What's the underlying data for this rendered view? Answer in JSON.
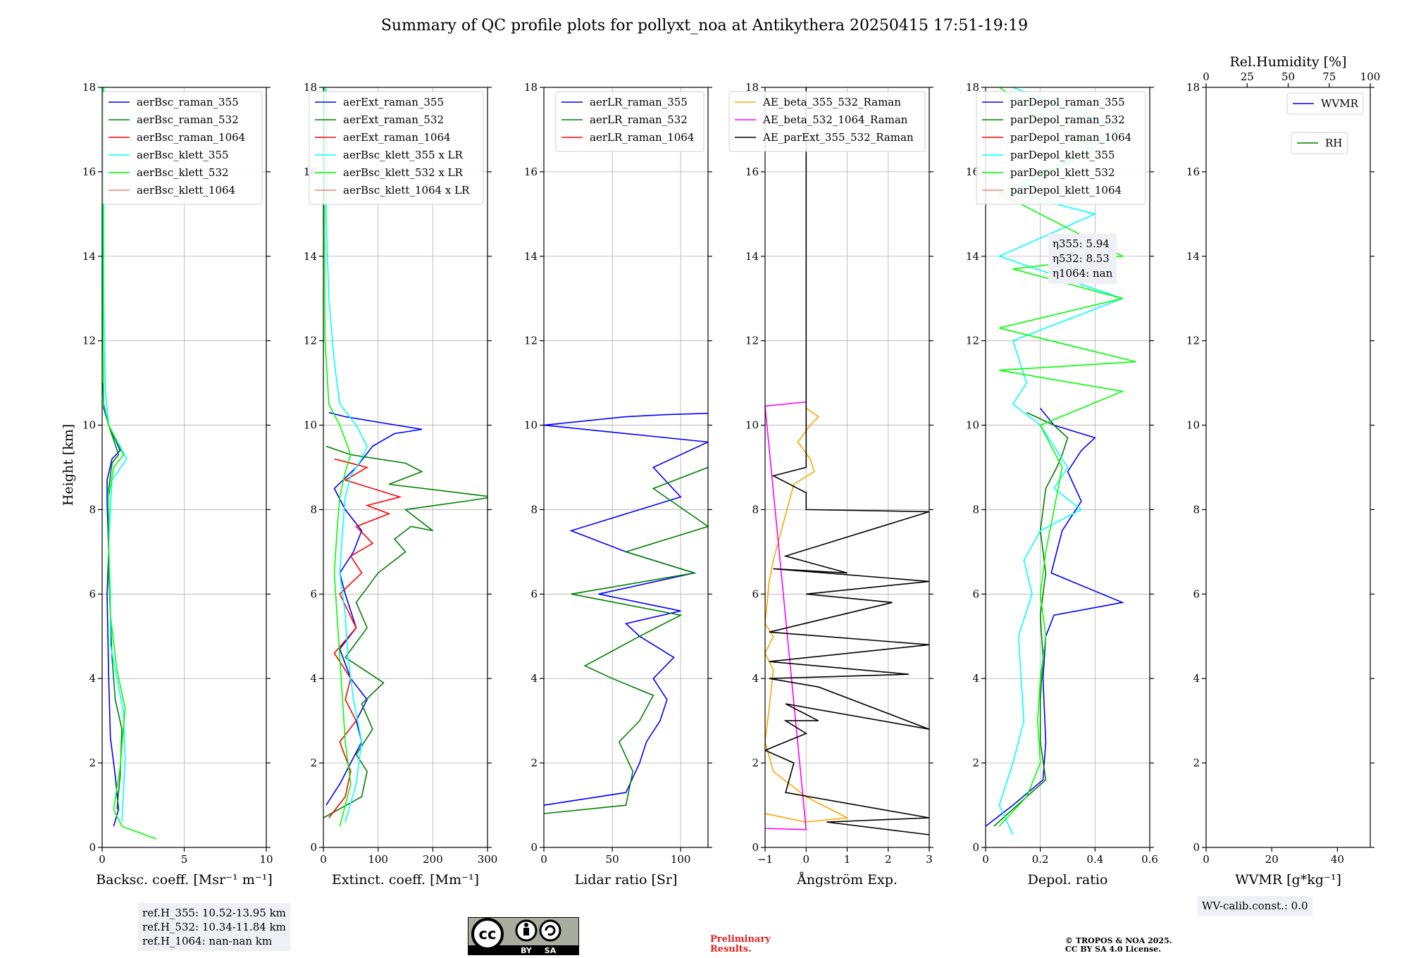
{
  "figure": {
    "title": "Summary of QC profile plots for pollyxt_noa at Antikythera 20250415 17:51-19:19",
    "ylabel": "Height [km]",
    "ref_heights": [
      "ref.H_355: 10.52-13.95 km",
      "ref.H_532: 10.34-11.84 km",
      "ref.H_1064: nan-nan km"
    ],
    "wv_calib": "WV-calib.const.: 0.0",
    "preliminary": [
      "Preliminary",
      "Results."
    ],
    "copyright": [
      "© TROPOS & NOA 2025.",
      "CC BY SA 4.0 License."
    ],
    "license_badge": {
      "by": "BY",
      "sa": "SA",
      "cc": "cc"
    },
    "eta": [
      "η355: 5.94",
      "η532: 8.53",
      "η1064: nan"
    ],
    "colors": {
      "blue": "#0000ff",
      "green": "#008000",
      "red": "#ff0000",
      "cyan": "#00ffff",
      "lime": "#00ff00",
      "salmon": "#fa8072",
      "orange": "#ffa500",
      "magenta": "#ff00ff",
      "black": "#000000"
    }
  },
  "chart_data": [
    {
      "type": "line",
      "xlabel": "Backsc. coeff. [Msr⁻¹ m⁻¹]",
      "xlim": [
        0,
        10
      ],
      "xticks": [
        0,
        5,
        10
      ],
      "ylabel": "Height [km]",
      "ylim": [
        0,
        18
      ],
      "yticks": [
        0,
        2,
        4,
        6,
        8,
        10,
        12,
        14,
        16,
        18
      ],
      "grid": true,
      "legend": "top-right",
      "series": [
        {
          "name": "aerBsc_raman_355",
          "color": "#0000ff",
          "x": [
            0.7,
            1.0,
            0.8,
            0.5,
            0.4,
            0.3,
            0.4,
            0.3,
            0.3,
            0.6,
            1.1,
            0.4,
            0.1,
            0.05
          ],
          "y": [
            0.5,
            0.9,
            1.7,
            2.6,
            4,
            6,
            7,
            8.2,
            8.7,
            9.2,
            9.4,
            10,
            10.4,
            11
          ]
        },
        {
          "name": "aerBsc_raman_532",
          "color": "#008000",
          "x": [
            0.9,
            1.1,
            1.2,
            0.8,
            0.6,
            0.5,
            0.4,
            0.4,
            0.4,
            0.6,
            1.0,
            0.4,
            0.1
          ],
          "y": [
            0.9,
            1.7,
            2.8,
            3.5,
            4.5,
            5.5,
            6.5,
            7.5,
            8.5,
            9.1,
            9.3,
            10,
            10.5
          ]
        },
        {
          "name": "aerBsc_raman_1064",
          "color": "#ff0000",
          "x": [],
          "y": []
        },
        {
          "name": "aerBsc_klett_355",
          "color": "#00ffff",
          "x": [
            1.2,
            1.3,
            1.4,
            1.3,
            0.5,
            0.5,
            0.4,
            0.5,
            0.6,
            1.5,
            0.4,
            0.2,
            0.15,
            0.1,
            0.1,
            0.1,
            0.05
          ],
          "y": [
            0.6,
            1.3,
            2.1,
            3.2,
            4.8,
            6,
            7.2,
            8,
            8.7,
            9.2,
            10,
            10.8,
            11.8,
            13,
            15,
            16.5,
            18
          ]
        },
        {
          "name": "aerBsc_klett_532",
          "color": "#00ff00",
          "x": [
            3.3,
            1.2,
            0.7,
            1.1,
            1.4,
            0.9,
            0.5,
            0.4,
            0.4,
            0.7,
            1.3,
            0.4,
            0.1,
            0.05,
            0.05,
            0.05,
            0.1
          ],
          "y": [
            0.2,
            0.5,
            0.9,
            1.9,
            3.3,
            4.2,
            5.5,
            7,
            8.3,
            9,
            9.3,
            10,
            10.5,
            12,
            14,
            16,
            18
          ]
        },
        {
          "name": "aerBsc_klett_1064",
          "color": "#fa8072",
          "x": [],
          "y": []
        }
      ]
    },
    {
      "type": "line",
      "xlabel": "Extinct. coeff. [Mm⁻¹]",
      "xlim": [
        0,
        300
      ],
      "xticks": [
        0,
        100,
        200,
        300
      ],
      "ylim": [
        0,
        18
      ],
      "yticks": [
        0,
        2,
        4,
        6,
        8,
        10,
        12,
        14,
        16,
        18
      ],
      "grid": true,
      "legend": "top-right",
      "series": [
        {
          "name": "aerExt_raman_355",
          "color": "#0000ff",
          "x": [
            5,
            30,
            50,
            70,
            60,
            80,
            50,
            30,
            60,
            40,
            30,
            55,
            70,
            40,
            20,
            60,
            90,
            130,
            180,
            40,
            10
          ],
          "y": [
            1,
            1.5,
            2,
            2.5,
            3,
            3.5,
            4,
            4.7,
            5.2,
            6,
            6.5,
            7,
            7.5,
            8,
            8.5,
            9,
            9.5,
            9.8,
            9.9,
            10.2,
            10.3
          ]
        },
        {
          "name": "aerExt_raman_532",
          "color": "#008000",
          "x": [
            0,
            70,
            80,
            60,
            90,
            70,
            110,
            40,
            80,
            60,
            100,
            150,
            130,
            160,
            200,
            150,
            260,
            310,
            120,
            180,
            150,
            50,
            5
          ],
          "y": [
            0.7,
            1.2,
            1.8,
            2.2,
            2.8,
            3.4,
            3.9,
            4.5,
            5.2,
            5.8,
            6.5,
            7,
            7.3,
            7.6,
            7.5,
            8,
            8.2,
            8.3,
            8.6,
            8.9,
            9.1,
            9.3,
            9.5
          ]
        },
        {
          "name": "aerExt_raman_1064",
          "color": "#ff0000",
          "x": [
            10,
            40,
            50,
            30,
            60,
            40,
            50,
            20,
            60,
            30,
            70,
            50,
            90,
            60,
            120,
            80,
            140,
            40,
            80,
            20
          ],
          "y": [
            0.7,
            1.2,
            1.8,
            2.5,
            3,
            3.5,
            4,
            4.6,
            5.2,
            6,
            6.5,
            6.9,
            7.2,
            7.6,
            7.9,
            8.1,
            8.3,
            8.7,
            9,
            9.2
          ]
        },
        {
          "name": "aerBsc_klett_355 x LR",
          "color": "#00ffff",
          "x": [
            40,
            60,
            70,
            55,
            45,
            40,
            30,
            35,
            40,
            50,
            70,
            80,
            60,
            30,
            20,
            10,
            5,
            5
          ],
          "y": [
            0.6,
            1.5,
            2.5,
            3.5,
            4.5,
            5.5,
            6.5,
            7.5,
            8.3,
            8.8,
            9.2,
            9.5,
            10,
            10.5,
            11.5,
            13,
            15,
            18
          ]
        },
        {
          "name": "aerBsc_klett_532 x LR",
          "color": "#00ff00",
          "x": [
            30,
            50,
            40,
            35,
            30,
            25,
            20,
            25,
            30,
            40,
            50,
            30,
            10,
            3,
            2,
            2
          ],
          "y": [
            0.5,
            1.5,
            2.5,
            3.5,
            4.5,
            5.5,
            6.5,
            7.5,
            8.3,
            8.9,
            9.3,
            10,
            10.5,
            12,
            15,
            18
          ]
        },
        {
          "name": "aerBsc_klett_1064 x LR",
          "color": "#fa8072",
          "x": [],
          "y": []
        }
      ]
    },
    {
      "type": "line",
      "xlabel": "Lidar ratio [Sr]",
      "xlim": [
        0,
        120
      ],
      "xticks": [
        0,
        50,
        100
      ],
      "ylim": [
        0,
        18
      ],
      "yticks": [
        0,
        2,
        4,
        6,
        8,
        10,
        12,
        14,
        16,
        18
      ],
      "grid": true,
      "legend": "top-right",
      "series": [
        {
          "name": "aerLR_raman_355",
          "color": "#0000ff",
          "x": [
            0,
            60,
            70,
            75,
            85,
            90,
            80,
            95,
            70,
            60,
            100,
            40,
            110,
            60,
            20,
            100,
            80,
            120,
            0,
            60,
            90,
            120
          ],
          "y": [
            1,
            1.3,
            2,
            2.5,
            3,
            3.5,
            4,
            4.5,
            5,
            5.3,
            5.6,
            6,
            6.5,
            7,
            7.5,
            8.3,
            9,
            9.6,
            10,
            10.2,
            10.25,
            10.28
          ]
        },
        {
          "name": "aerLR_raman_532",
          "color": "#008000",
          "x": [
            0,
            60,
            65,
            55,
            70,
            80,
            50,
            30,
            70,
            100,
            20,
            110,
            60,
            120,
            80,
            120
          ],
          "y": [
            0.8,
            1,
            1.8,
            2.5,
            3,
            3.6,
            4,
            4.3,
            5,
            5.5,
            6,
            6.5,
            7,
            7.6,
            8.5,
            9
          ]
        },
        {
          "name": "aerLR_raman_1064",
          "color": "#ff0000",
          "x": [],
          "y": []
        }
      ]
    },
    {
      "type": "line",
      "xlabel": "Ångström Exp.",
      "xlim": [
        -1,
        3
      ],
      "xticks": [
        -1,
        0,
        1,
        2,
        3
      ],
      "ylim": [
        0,
        18
      ],
      "yticks": [
        0,
        2,
        4,
        6,
        8,
        10,
        12,
        14,
        16,
        18
      ],
      "grid": true,
      "legend": "top-right",
      "series": [
        {
          "name": "AE_beta_355_532_Raman",
          "color": "#ffa500",
          "x": [
            -1,
            0,
            1,
            0,
            -0.8,
            -1,
            -0.9,
            -0.8,
            -1,
            -0.8,
            -1,
            -0.9,
            -0.8,
            -0.3,
            0.2,
            0.1,
            -0.2,
            0.1,
            0.3,
            0
          ],
          "y": [
            0.8,
            0.6,
            0.7,
            1.2,
            1.8,
            2.5,
            3.3,
            4.2,
            4.6,
            5,
            5.3,
            6.3,
            6.8,
            8.6,
            8.9,
            9.2,
            9.6,
            10,
            10.2,
            10.4
          ]
        },
        {
          "name": "AE_beta_532_1064_Raman",
          "color": "#ff00ff",
          "x": [
            -1,
            0,
            -1,
            0
          ],
          "y": [
            0.45,
            0.42,
            10.45,
            10.55
          ]
        },
        {
          "name": "AE_parExt_355_532_Raman",
          "color": "#000000",
          "x": [
            3,
            0.5,
            3,
            -0.5,
            -0.3,
            -1,
            0,
            -0.5,
            0.3,
            -0.5,
            3,
            0.3,
            -0.9,
            2.5,
            -0.9,
            3,
            -0.9,
            2.1,
            0,
            3,
            -0.8,
            1,
            -0.5,
            3,
            0,
            0,
            -0.8,
            0,
            0,
            0
          ],
          "y": [
            0.3,
            0.6,
            0.7,
            1.3,
            2,
            2.3,
            2.7,
            3,
            3,
            3.4,
            2.8,
            3.8,
            4,
            4.1,
            4.4,
            4.8,
            5.1,
            5.8,
            6,
            6.3,
            6.6,
            6.5,
            6.9,
            7.95,
            8.0,
            8.4,
            8.8,
            9,
            10.55,
            18
          ]
        }
      ]
    },
    {
      "type": "line",
      "xlabel": "Depol. ratio",
      "xlim": [
        0,
        0.6
      ],
      "xticks": [
        0,
        0.2,
        0.4,
        0.6
      ],
      "ylim": [
        0,
        18
      ],
      "yticks": [
        0,
        2,
        4,
        6,
        8,
        10,
        12,
        14,
        16,
        18
      ],
      "grid": true,
      "legend": "top-right",
      "series": [
        {
          "name": "parDepol_raman_355",
          "color": "#0000ff",
          "x": [
            0,
            0.1,
            0.21,
            0.22,
            0.21,
            0.22,
            0.25,
            0.5,
            0.24,
            0.28,
            0.35,
            0.3,
            0.35,
            0.4,
            0.25,
            0.2
          ],
          "y": [
            0.5,
            1,
            1.6,
            2.5,
            4,
            5,
            5.5,
            5.8,
            6.5,
            7.5,
            8.2,
            8.9,
            9.4,
            9.7,
            10,
            10.4
          ]
        },
        {
          "name": "parDepol_raman_532",
          "color": "#008000",
          "x": [
            0.03,
            0.15,
            0.22,
            0.2,
            0.2,
            0.21,
            0.2,
            0.22,
            0.2,
            0.22,
            0.26,
            0.28,
            0.3,
            0.25,
            0.15
          ],
          "y": [
            0.5,
            1.2,
            1.6,
            2.5,
            3.5,
            4.5,
            5.5,
            6.5,
            7.5,
            8.5,
            9,
            9.3,
            9.7,
            10,
            10.3
          ]
        },
        {
          "name": "parDepol_raman_1064",
          "color": "#ff0000",
          "x": [],
          "y": []
        },
        {
          "name": "parDepol_klett_355",
          "color": "#00ffff",
          "x": [
            0.1,
            0.05,
            0.1,
            0.14,
            0.13,
            0.12,
            0.17,
            0.14,
            0.2,
            0.35,
            0.25,
            0.3,
            0.25,
            0.2,
            0.1,
            0.15,
            0.1,
            0.5,
            0.05,
            0.4,
            0.1,
            0.5,
            0.1
          ],
          "y": [
            0.3,
            1,
            2,
            3,
            4,
            5,
            6,
            6.8,
            7.5,
            8,
            8.5,
            9,
            9.5,
            10,
            10.5,
            11,
            12,
            13,
            14,
            15,
            15.5,
            17,
            18
          ]
        },
        {
          "name": "parDepol_klett_532",
          "color": "#00ff00",
          "x": [
            0.05,
            0.15,
            0.2,
            0.19,
            0.2,
            0.22,
            0.2,
            0.22,
            0.25,
            0.28,
            0.2,
            0.5,
            0.05,
            0.55,
            0.05,
            0.5,
            0.1,
            0.5,
            0.05,
            0.4,
            0.05
          ],
          "y": [
            0.5,
            1.2,
            2,
            3,
            4,
            5,
            6,
            7,
            8,
            9,
            10,
            10.8,
            11.3,
            11.5,
            12.3,
            13,
            13.7,
            14,
            15.5,
            16.5,
            18
          ]
        },
        {
          "name": "parDepol_klett_1064",
          "color": "#fa8072",
          "x": [],
          "y": []
        }
      ]
    },
    {
      "type": "line",
      "xlabel": "WVMR [g*kg⁻¹]",
      "xlim": [
        0,
        50
      ],
      "xticks": [
        0,
        20,
        40
      ],
      "ylim": [
        0,
        18
      ],
      "yticks": [
        0,
        2,
        4,
        6,
        8,
        10,
        12,
        14,
        16,
        18
      ],
      "top_axis": {
        "label": "Rel.Humidity [%]",
        "lim": [
          0,
          100
        ],
        "ticks": [
          0,
          25,
          50,
          75,
          100
        ]
      },
      "grid": false,
      "legend": "top-right",
      "series": [
        {
          "name": "WVMR",
          "color": "#0000ff",
          "x": [],
          "y": []
        },
        {
          "name": "RH",
          "color": "#008000",
          "x": [],
          "y": []
        }
      ]
    }
  ]
}
